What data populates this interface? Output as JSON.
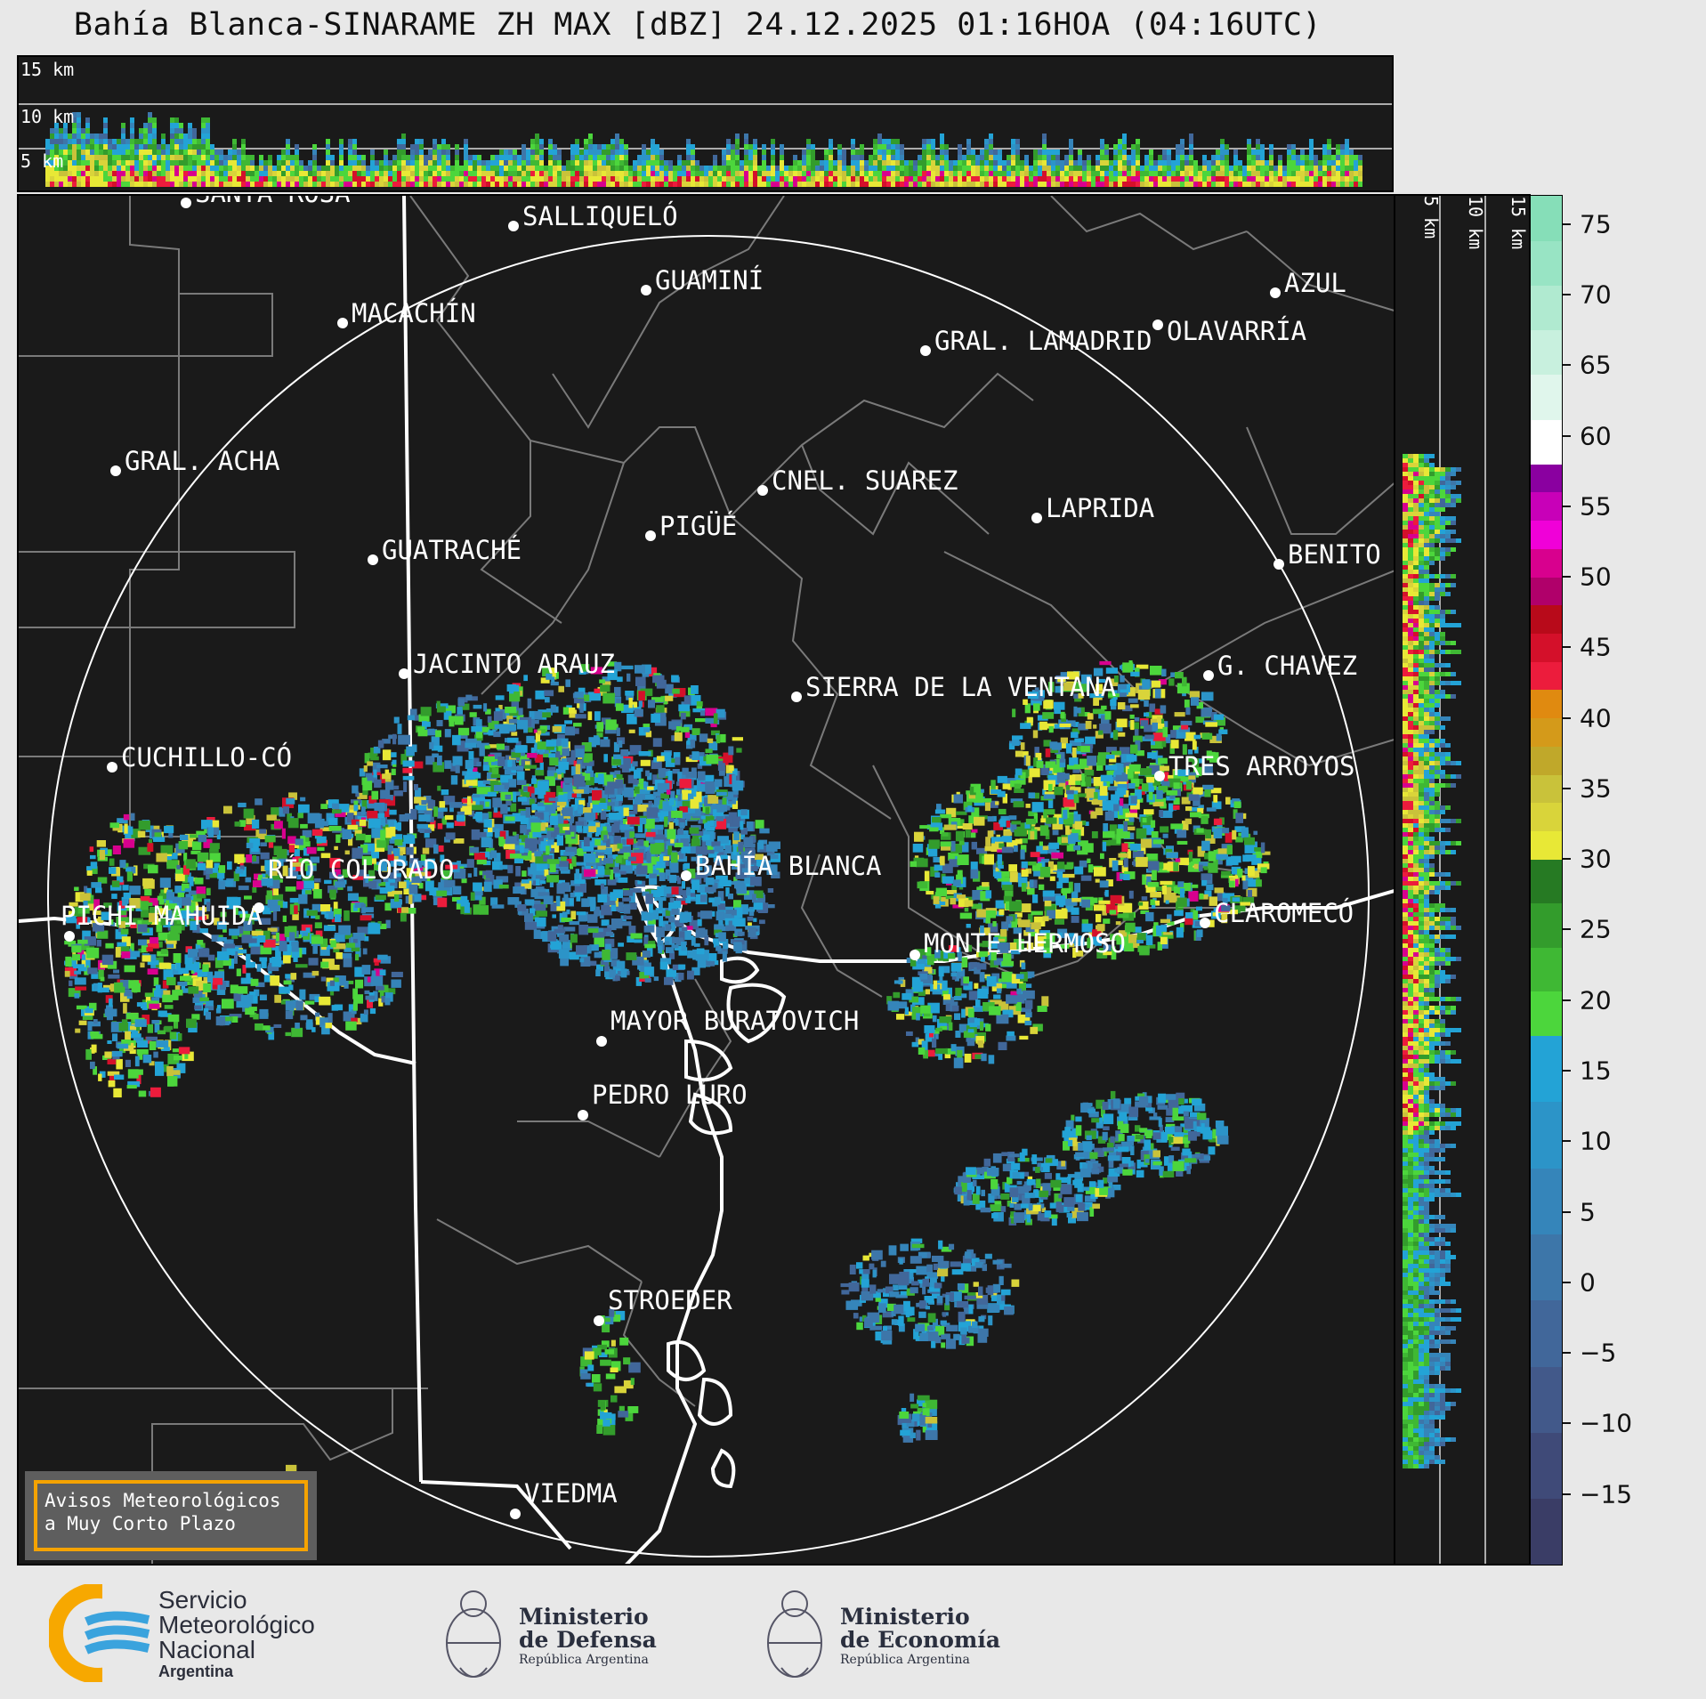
{
  "title": "Bahía Blanca-SINARAME ZH MAX [dBZ] 24.12.2025 01:16HOA (04:16UTC)",
  "top_panel": {
    "height_labels": [
      "15 km",
      "10 km",
      "5 km"
    ]
  },
  "side_panel": {
    "height_labels": [
      "5 km",
      "10 km",
      "15 km"
    ]
  },
  "colorbar": {
    "unit": "dBZ",
    "ticks": [
      "75",
      "70",
      "65",
      "60",
      "55",
      "50",
      "45",
      "40",
      "35",
      "30",
      "25",
      "20",
      "15",
      "10",
      "5",
      "0",
      "−5",
      "−10",
      "−15"
    ],
    "bands": [
      {
        "from": -20,
        "to": 17.5,
        "colors": [
          "#3a3d66",
          "#3f4a78",
          "#42598a",
          "#41679a",
          "#3d76a9",
          "#3585ba",
          "#2c94c8",
          "#23a3d6"
        ]
      },
      {
        "from": 17.5,
        "to": 30,
        "colors": [
          "#4cd63c",
          "#3fb834",
          "#339c2c",
          "#267a23"
        ]
      },
      {
        "from": 30,
        "to": 42,
        "colors": [
          "#e8e836",
          "#d9d43a",
          "#c9c23a",
          "#c0a82a",
          "#d49a1a",
          "#e08a10"
        ]
      },
      {
        "from": 42,
        "to": 48,
        "colors": [
          "#ec1c3c",
          "#d4102a",
          "#b80a1a"
        ]
      },
      {
        "from": 48,
        "to": 58,
        "colors": [
          "#b0006a",
          "#d8008e",
          "#f000d8",
          "#c800b8",
          "#8a00a0"
        ]
      },
      {
        "from": 58,
        "to": 77,
        "colors": [
          "#ffffff",
          "#e0f6ec",
          "#c8f0de",
          "#b0ead0",
          "#98e4c4",
          "#86deb8"
        ]
      }
    ]
  },
  "cities": [
    {
      "name": "SANTA ROSA"
    },
    {
      "name": "SALLIQUELÓ"
    },
    {
      "name": "GUAMINÍ"
    },
    {
      "name": "MACACHÍN"
    },
    {
      "name": "GRAL. ACHA"
    },
    {
      "name": "GRAL. LAMADRID"
    },
    {
      "name": "CNEL. SUAREZ"
    },
    {
      "name": "LAPRIDA"
    },
    {
      "name": "AZUL"
    },
    {
      "name": "OLAVARRÍA"
    },
    {
      "name": "PIGÜÉ"
    },
    {
      "name": "GUATRACHÉ"
    },
    {
      "name": "BENITO"
    },
    {
      "name": "JACINTO ARAUZ"
    },
    {
      "name": "SIERRA DE LA VENTANA"
    },
    {
      "name": "G. CHAVEZ"
    },
    {
      "name": "CUCHILLO-CÓ"
    },
    {
      "name": "TRES ARROYOS"
    },
    {
      "name": "BAHÍA BLANCA"
    },
    {
      "name": "PICHI MAHUIDA"
    },
    {
      "name": "CLAROMECÓ"
    },
    {
      "name": "MONTE HERMOSO"
    },
    {
      "name": "RÍO COLORADO"
    },
    {
      "name": "MAYOR BURATOVICH"
    },
    {
      "name": "PEDRO LURO"
    },
    {
      "name": "STROEDER"
    },
    {
      "name": "VIEDMA"
    }
  ],
  "notice": {
    "line1": "Avisos Meteorológicos",
    "line2": "a Muy Corto Plazo"
  },
  "footer": {
    "smn": {
      "line1": "Servicio",
      "line2": "Meteorológico",
      "line3": "Nacional",
      "line4": "Argentina"
    },
    "defensa": {
      "line1": "Ministerio",
      "line2": "de Defensa",
      "line3": "República Argentina"
    },
    "economia": {
      "line1": "Ministerio",
      "line2": "de Economía",
      "line3": "República Argentina"
    }
  }
}
